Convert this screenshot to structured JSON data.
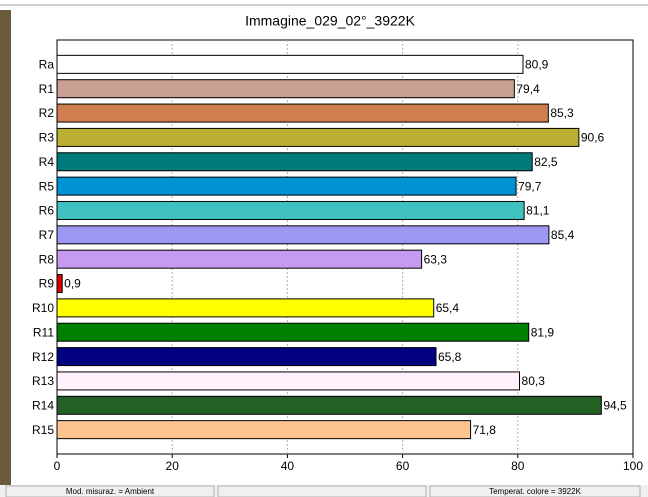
{
  "chart_data": {
    "type": "barh",
    "title": "Immagine_029_02°_3922K",
    "categories": [
      "Ra",
      "R1",
      "R2",
      "R3",
      "R4",
      "R5",
      "R6",
      "R7",
      "R8",
      "R9",
      "R10",
      "R11",
      "R12",
      "R13",
      "R14",
      "R15"
    ],
    "values": [
      80.9,
      79.4,
      85.3,
      90.6,
      82.5,
      79.7,
      81.1,
      85.4,
      63.3,
      0.9,
      65.4,
      81.9,
      65.8,
      80.3,
      94.5,
      71.8
    ],
    "value_labels": [
      "80,9",
      "79,4",
      "85,3",
      "90,6",
      "82,5",
      "79,7",
      "81,1",
      "85,4",
      "63,3",
      "0,9",
      "65,4",
      "81,9",
      "65,8",
      "80,3",
      "94,5",
      "71,8"
    ],
    "colors": [
      "#ffffff",
      "#c9a091",
      "#cf7f4f",
      "#bbb032",
      "#007b7b",
      "#0093d3",
      "#3fc1c0",
      "#9c97f2",
      "#c79af2",
      "#e00000",
      "#ffff00",
      "#008000",
      "#000080",
      "#fff0fb",
      "#236023",
      "#ffc38f"
    ],
    "xlim": [
      0,
      100
    ],
    "xticks": [
      0,
      20,
      40,
      60,
      80,
      100
    ],
    "grid": true
  },
  "status_bar": {
    "left": "Mod. misuraz. = Ambient",
    "right": "Temperat. colore = 3922K"
  }
}
